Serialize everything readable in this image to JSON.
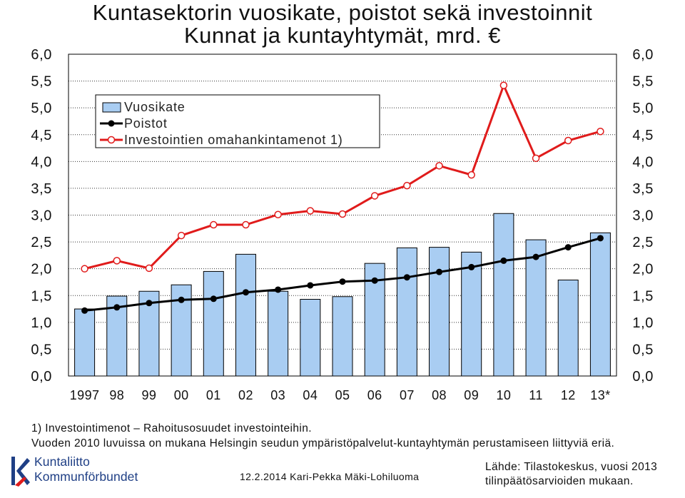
{
  "title": {
    "line1": "Kuntasektorin vuosikate, poistot sekä investoinnit",
    "line2": "Kunnat ja kuntayhtymät, mrd. €"
  },
  "chart_data": {
    "type": "bar",
    "categories": [
      "1997",
      "98",
      "99",
      "00",
      "01",
      "02",
      "03",
      "04",
      "05",
      "06",
      "07",
      "08",
      "09",
      "10",
      "11",
      "12",
      "13*"
    ],
    "series": [
      {
        "name": "Vuosikate",
        "type": "bar",
        "color": "#a9cdf2",
        "values": [
          1.25,
          1.49,
          1.58,
          1.7,
          1.95,
          2.27,
          1.58,
          1.43,
          1.48,
          2.1,
          2.39,
          2.4,
          2.31,
          3.03,
          2.54,
          1.79,
          2.67
        ]
      },
      {
        "name": "Poistot",
        "type": "line",
        "color": "#000000",
        "values": [
          1.22,
          1.28,
          1.36,
          1.42,
          1.44,
          1.56,
          1.61,
          1.69,
          1.76,
          1.78,
          1.84,
          1.94,
          2.03,
          2.15,
          2.22,
          2.4,
          2.57
        ]
      },
      {
        "name": "Investointien omahankintamenot 1)",
        "type": "line",
        "color": "#e01b1b",
        "values": [
          2.0,
          2.15,
          2.01,
          2.62,
          2.82,
          2.82,
          3.01,
          3.08,
          3.02,
          3.36,
          3.55,
          3.92,
          3.75,
          5.42,
          4.06,
          4.39,
          4.56
        ]
      }
    ],
    "ylim": [
      0,
      6
    ],
    "yticks": [
      "0,0",
      "0,5",
      "1,0",
      "1,5",
      "2,0",
      "2,5",
      "3,0",
      "3,5",
      "4,0",
      "4,5",
      "5,0",
      "5,5",
      "6,0"
    ],
    "xlabel": "",
    "ylabel": "",
    "grid": true,
    "legend_position": "top-left"
  },
  "footnotes": {
    "line1": "1) Investointimenot – Rahoitusosuudet investointeihin.",
    "line2": "Vuoden 2010 luvuissa on mukana Helsingin seudun ympäristöpalvelut-kuntayhtymän perustamiseen liittyviä eriä."
  },
  "signature": "12.2.2014 Kari-Pekka Mäki-Lohiluoma",
  "source": {
    "line1": "Lähde: Tilastokeskus, vuosi 2013",
    "line2": "tilinpäätösarvioiden mukaan."
  },
  "logo": {
    "line1": "Kuntaliitto",
    "line2": "Kommunförbundet",
    "color": "#1f3f85"
  }
}
